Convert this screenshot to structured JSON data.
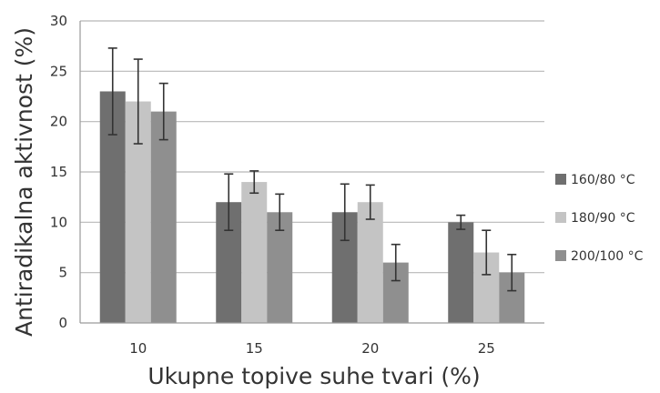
{
  "chart_data": {
    "type": "bar",
    "title": "",
    "xlabel": "Ukupne topive suhe tvari (%)",
    "ylabel": "Antiradikalna aktivnost (%)",
    "categories": [
      "10",
      "15",
      "20",
      "25"
    ],
    "ylim": [
      0,
      30
    ],
    "yticks": [
      0,
      5,
      10,
      15,
      20,
      25,
      30
    ],
    "grid": true,
    "legend_position": "right",
    "series": [
      {
        "name": "160/80 °C",
        "color": "#6f6f6f",
        "values": [
          23,
          12,
          11,
          10
        ],
        "errors": [
          4.3,
          2.8,
          2.8,
          0.7
        ]
      },
      {
        "name": "180/90 °C",
        "color": "#c4c4c4",
        "values": [
          22,
          14,
          12,
          7
        ],
        "errors": [
          4.2,
          1.1,
          1.7,
          2.2
        ]
      },
      {
        "name": "200/100 °C",
        "color": "#8f8f8f",
        "values": [
          21,
          11,
          6,
          5
        ],
        "errors": [
          2.8,
          1.8,
          1.8,
          1.8
        ]
      }
    ]
  }
}
